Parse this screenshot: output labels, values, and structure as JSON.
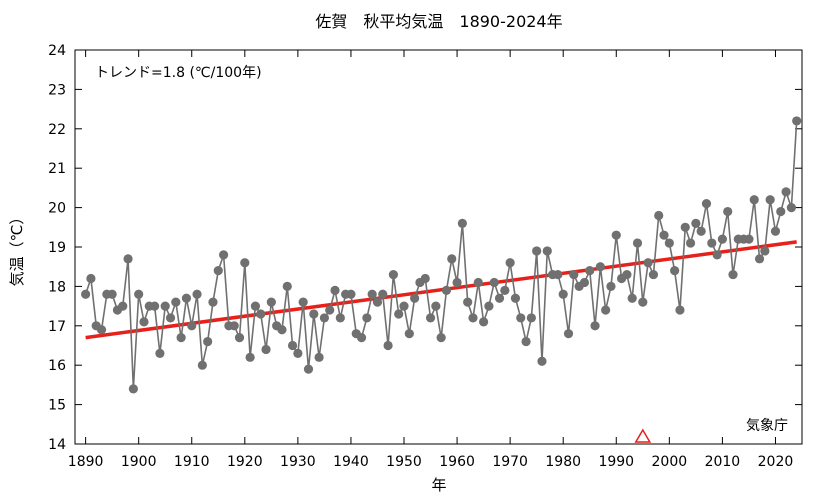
{
  "chart_data": {
    "type": "line",
    "title": "佐賀　秋平均気温　1890-2024年",
    "xlabel": "年",
    "ylabel": "気温（℃）",
    "xlim": [
      1888,
      2025
    ],
    "ylim": [
      14,
      24
    ],
    "xticks": [
      1890,
      1900,
      1910,
      1920,
      1930,
      1940,
      1950,
      1960,
      1970,
      1980,
      1990,
      2000,
      2010,
      2020
    ],
    "yticks": [
      14,
      15,
      16,
      17,
      18,
      19,
      20,
      21,
      22,
      23,
      24
    ],
    "grid": false,
    "trend_text": "トレンド=1.8 (℃/100年)",
    "source_text": "気象庁",
    "trend": {
      "x": [
        1890,
        2024
      ],
      "y": [
        16.7,
        19.13
      ]
    },
    "marker_year": 1995,
    "colors": {
      "series": "#707070",
      "trend": "#e8201a",
      "marker": "#e8201a"
    },
    "series": [
      {
        "x": [
          1890,
          1891,
          1892,
          1893,
          1894,
          1895,
          1896,
          1897,
          1898,
          1899,
          1900,
          1901,
          1902,
          1903,
          1904,
          1905,
          1906,
          1907,
          1908,
          1909,
          1910,
          1911,
          1912,
          1913,
          1914,
          1915,
          1916,
          1917,
          1918,
          1919,
          1920,
          1921,
          1922,
          1923,
          1924,
          1925,
          1926,
          1927,
          1928,
          1929,
          1930,
          1931,
          1932,
          1933,
          1934,
          1935,
          1936,
          1937,
          1938,
          1939,
          1940,
          1941,
          1942,
          1943,
          1944,
          1945,
          1946,
          1947,
          1948,
          1949,
          1950,
          1951,
          1952,
          1953,
          1954,
          1955,
          1956,
          1957,
          1958,
          1959,
          1960,
          1961,
          1962,
          1963,
          1964,
          1965,
          1966,
          1967,
          1968,
          1969,
          1970,
          1971,
          1972,
          1973,
          1974,
          1975,
          1976,
          1977,
          1978,
          1979,
          1980,
          1981,
          1982,
          1983,
          1984,
          1985,
          1986,
          1987,
          1988,
          1989,
          1990,
          1991,
          1992,
          1993,
          1994,
          1995,
          1996,
          1997,
          1998,
          1999,
          2000,
          2001,
          2002,
          2003,
          2004,
          2005,
          2006,
          2007,
          2008,
          2009,
          2010,
          2011,
          2012,
          2013,
          2014,
          2015,
          2016,
          2017,
          2018,
          2019,
          2020,
          2021,
          2022,
          2023,
          2024
        ],
        "values": [
          17.8,
          18.2,
          17.0,
          16.9,
          17.8,
          17.8,
          17.4,
          17.5,
          18.7,
          15.4,
          17.8,
          17.1,
          17.5,
          17.5,
          16.3,
          17.5,
          17.2,
          17.6,
          16.7,
          17.7,
          17.0,
          17.8,
          16.0,
          16.6,
          17.6,
          18.4,
          18.8,
          17.0,
          17.0,
          16.7,
          18.6,
          16.2,
          17.5,
          17.3,
          16.4,
          17.6,
          17.0,
          16.9,
          18.0,
          16.5,
          16.3,
          17.6,
          15.9,
          17.3,
          16.2,
          17.2,
          17.4,
          17.9,
          17.2,
          17.8,
          17.8,
          16.8,
          16.7,
          17.2,
          17.8,
          17.6,
          17.8,
          16.5,
          18.3,
          17.3,
          17.5,
          16.8,
          17.7,
          18.1,
          18.2,
          17.2,
          17.5,
          16.7,
          17.9,
          18.7,
          18.1,
          19.6,
          17.6,
          17.2,
          18.1,
          17.1,
          17.5,
          18.1,
          17.7,
          17.9,
          18.6,
          17.7,
          17.2,
          16.6,
          17.2,
          18.9,
          16.1,
          18.9,
          18.3,
          18.3,
          17.8,
          16.8,
          18.3,
          18.0,
          18.1,
          18.4,
          17.0,
          18.5,
          17.4,
          18.0,
          19.3,
          18.2,
          18.3,
          17.7,
          19.1,
          17.6,
          18.6,
          18.3,
          19.8,
          19.3,
          19.1,
          18.4,
          17.4,
          19.5,
          19.1,
          19.6,
          19.4,
          20.1,
          19.1,
          18.8,
          19.2,
          19.9,
          18.3,
          19.2,
          19.2,
          19.2,
          20.2,
          18.7,
          18.9,
          20.2,
          19.4,
          19.9,
          20.4,
          20.0,
          22.2
        ]
      }
    ]
  }
}
